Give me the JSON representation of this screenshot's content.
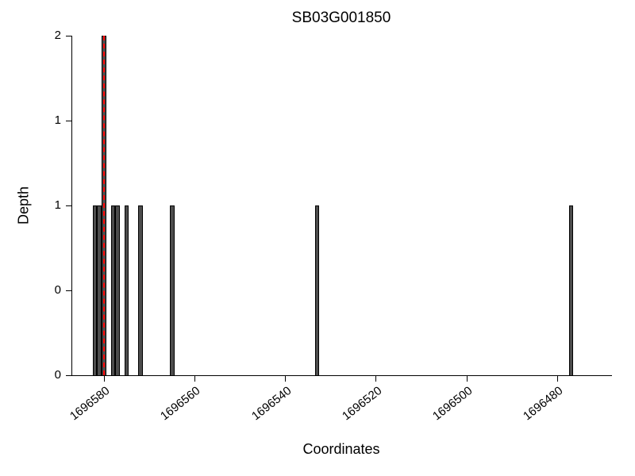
{
  "chart": {
    "title": "SB03G001850",
    "xlabel": "Coordinates",
    "ylabel": "Depth"
  },
  "chart_data": {
    "type": "bar",
    "title": "SB03G001850",
    "xlabel": "Coordinates",
    "ylabel": "Depth",
    "grid": false,
    "legend": null,
    "x_axis_reversed": true,
    "x_range": [
      1696587,
      1696468
    ],
    "ylim": [
      0,
      2
    ],
    "x_ticks": [
      {
        "value": 1696580,
        "label": "1696580"
      },
      {
        "value": 1696560,
        "label": "1696560"
      },
      {
        "value": 1696540,
        "label": "1696540"
      },
      {
        "value": 1696520,
        "label": "1696520"
      },
      {
        "value": 1696500,
        "label": "1696500"
      },
      {
        "value": 1696480,
        "label": "1696480"
      }
    ],
    "y_ticks": [
      {
        "value": 0,
        "label": "0"
      },
      {
        "value": 0.5,
        "label": "0"
      },
      {
        "value": 1,
        "label": "1"
      },
      {
        "value": 1.5,
        "label": "1"
      },
      {
        "value": 2,
        "label": "2"
      }
    ],
    "bars": [
      {
        "coordinate": 1696582,
        "depth": 1
      },
      {
        "coordinate": 1696581,
        "depth": 1
      },
      {
        "coordinate": 1696580,
        "depth": 2
      },
      {
        "coordinate": 1696578,
        "depth": 1
      },
      {
        "coordinate": 1696577,
        "depth": 1
      },
      {
        "coordinate": 1696575,
        "depth": 1
      },
      {
        "coordinate": 1696572,
        "depth": 1
      },
      {
        "coordinate": 1696565,
        "depth": 1
      },
      {
        "coordinate": 1696533,
        "depth": 1
      },
      {
        "coordinate": 1696477,
        "depth": 1
      }
    ],
    "marker_line": {
      "coordinate": 1696580,
      "style": "dashed",
      "color": "#ff0000"
    },
    "colors": {
      "bar_fill": "#4d4d4d",
      "bar_edge": "#000000",
      "marker": "#ff0000",
      "axis": "#000000",
      "background": "#ffffff"
    }
  }
}
